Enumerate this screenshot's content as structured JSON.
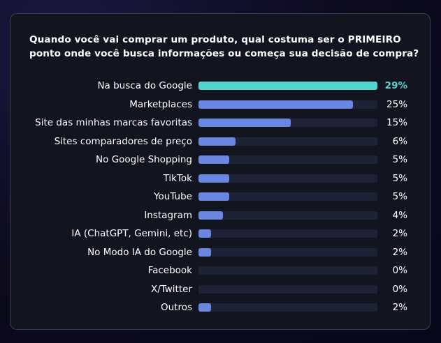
{
  "chart_data": {
    "type": "bar",
    "orientation": "horizontal",
    "title": "Quando você vai comprar um produto, qual costuma ser o PRIMEIRO ponto onde você busca informações ou começa sua decisão de compra?",
    "categories": [
      "Na busca do Google",
      "Marketplaces",
      "Site das minhas marcas favoritas",
      "Sites comparadores de preço",
      "No Google Shopping",
      "TikTok",
      "YouTube",
      "Instagram",
      "IA (ChatGPT, Gemini, etc)",
      "No Modo IA do Google",
      "Facebook",
      "X/Twitter",
      "Outros"
    ],
    "values": [
      29,
      25,
      15,
      6,
      5,
      5,
      5,
      4,
      2,
      2,
      0,
      0,
      2
    ],
    "value_labels": [
      "29%",
      "25%",
      "15%",
      "6%",
      "5%",
      "5%",
      "5%",
      "4%",
      "2%",
      "2%",
      "0%",
      "0%",
      "2%"
    ],
    "xlim": [
      0,
      29
    ],
    "highlight_index": 0,
    "colors": {
      "highlight": "#4fd6cf",
      "bar": "#6b86e0",
      "track": "#1d2235",
      "text": "#ffffff",
      "card_border": "#3a3f52"
    },
    "grid": false,
    "legend": "none"
  }
}
